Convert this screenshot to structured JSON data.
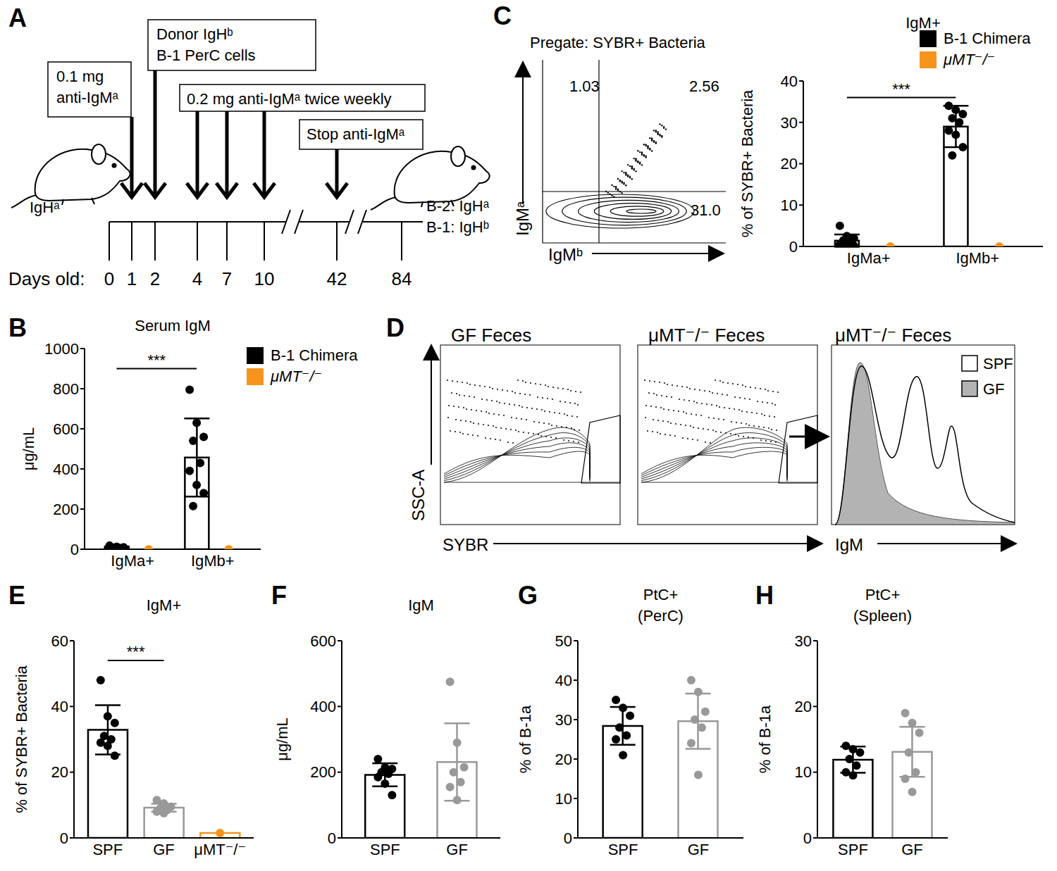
{
  "diagrams": {
    "A": {
      "panel": "A",
      "boxes": [
        {
          "lines": [
            "0.1 mg",
            "anti-IgMᵃ"
          ],
          "days": [
            1
          ]
        },
        {
          "lines": [
            "Donor IgHᵇ",
            "B-1 PerC cells"
          ],
          "days": [
            2
          ]
        },
        {
          "lines": [
            "0.2 mg anti-IgMᵃ twice weekly"
          ],
          "days": [
            4,
            7,
            10
          ]
        },
        {
          "lines": [
            "Stop anti-IgMᵃ"
          ],
          "days": [
            42
          ]
        }
      ],
      "mouse_left": "IgHᵃ",
      "mouse_right": [
        "B-2: IgHᵃ",
        "B-1: IgHᵇ"
      ],
      "axis_label": "Days old:",
      "days": [
        0,
        1,
        2,
        4,
        7,
        10,
        42,
        84
      ]
    },
    "C": {
      "panel": "C",
      "title": "Pregate: SYBR+ Bacteria",
      "xlabel": "IgMᵇ",
      "ylabel": "IgMᵃ",
      "quadrants": {
        "upper_left": "1.03",
        "upper_right": "2.56",
        "lower_right": "31.0"
      }
    },
    "D": {
      "panel": "D",
      "xlabel": "SYBR",
      "ylabel": "SSC-A",
      "hist_xlabel": "IgM",
      "plots": [
        "GF Feces",
        "μMT⁻/⁻ Feces",
        "μMT⁻/⁻ Feces"
      ],
      "hist_legend": [
        {
          "name": "SPF",
          "color": "#ffffff"
        },
        {
          "name": "GF",
          "color": "#b3b3b3"
        }
      ]
    }
  },
  "chart_data": [
    {
      "panel": "B",
      "type": "bar",
      "title": "Serum IgM",
      "ylabel": "μg/mL",
      "categories": [
        "IgMa+",
        "IgMb+"
      ],
      "ylim": [
        0,
        1000
      ],
      "yticks": [
        0,
        200,
        400,
        600,
        800,
        1000
      ],
      "legend": "upper right",
      "annotation": {
        "text": "***",
        "between": [
          "IgMa+",
          "IgMb+"
        ]
      },
      "series": [
        {
          "name": "B-1 Chimera",
          "color": "#000000",
          "values": [
            8,
            457
          ],
          "error": [
            6,
            195
          ],
          "points": [
            [
              18,
              12,
              10,
              8,
              6,
              5,
              3,
              2,
              0
            ],
            [
              795,
              630,
              560,
              540,
              430,
              390,
              320,
              280,
              215
            ]
          ]
        },
        {
          "name": "μMT⁻/⁻",
          "color": "#f7941d",
          "values": [
            0,
            0
          ],
          "points": [
            [
              0
            ],
            [
              0
            ]
          ]
        }
      ]
    },
    {
      "type": "bar",
      "title": "IgM+",
      "ylabel": "% of SYBR+ Bacteria",
      "categories": [
        "IgMa+",
        "IgMb+"
      ],
      "ylim": [
        0,
        40
      ],
      "yticks": [
        0,
        10,
        20,
        30,
        40
      ],
      "legend": "upper right",
      "annotation": {
        "text": "***",
        "between": [
          "IgMa+",
          "IgMb+"
        ]
      },
      "series": [
        {
          "name": "B-1 Chimera",
          "color": "#000000",
          "values": [
            1.4,
            29
          ],
          "error": [
            1.5,
            5
          ],
          "points": [
            [
              5,
              2.5,
              2,
              1.5,
              1,
              0.5,
              0.3,
              0.2,
              0
            ],
            [
              34,
              33,
              32,
              31,
              30,
              28,
              27,
              24,
              22
            ]
          ]
        },
        {
          "name": "μMT⁻/⁻",
          "color": "#f7941d",
          "values": [
            0,
            0
          ],
          "points": [
            [
              0
            ],
            [
              0
            ]
          ]
        }
      ]
    },
    {
      "panel": "E",
      "type": "bar",
      "title": "IgM+",
      "ylabel": "% of SYBR+ Bacteria",
      "categories": [
        "SPF",
        "GF",
        "μMT⁻/⁻"
      ],
      "ylim": [
        0,
        60
      ],
      "yticks": [
        0,
        20,
        40,
        60
      ],
      "annotation": {
        "text": "***",
        "between": [
          "SPF",
          "GF"
        ]
      },
      "series": [
        {
          "colors": [
            "#000000",
            "#999999",
            "#f7941d"
          ],
          "values": [
            32.9,
            9.2,
            1.5
          ],
          "error": [
            7.5,
            1.2,
            null
          ],
          "points": [
            [
              48,
              37,
              35,
              31,
              30,
              29,
              28,
              25
            ],
            [
              11.5,
              10.5,
              9.5,
              9,
              8.5,
              8,
              7.5
            ],
            [
              1.5
            ]
          ]
        }
      ]
    },
    {
      "panel": "F",
      "type": "bar",
      "title": "IgM",
      "ylabel": "μg/mL",
      "categories": [
        "SPF",
        "GF"
      ],
      "ylim": [
        0,
        600
      ],
      "yticks": [
        0,
        200,
        400,
        600
      ],
      "series": [
        {
          "colors": [
            "#000000",
            "#999999"
          ],
          "values": [
            192,
            231
          ],
          "error": [
            35,
            118
          ],
          "points": [
            [
              240,
              215,
              210,
              200,
              195,
              185,
              165,
              130
            ],
            [
              475,
              290,
              215,
              200,
              170,
              155,
              115
            ]
          ]
        }
      ]
    },
    {
      "panel": "G",
      "type": "bar",
      "title": "PtC+",
      "subtitle": "(PerC)",
      "ylabel": "% of B-1a",
      "categories": [
        "SPF",
        "GF"
      ],
      "ylim": [
        0,
        50
      ],
      "yticks": [
        0,
        10,
        20,
        30,
        40,
        50
      ],
      "series": [
        {
          "colors": [
            "#000000",
            "#999999"
          ],
          "values": [
            28.4,
            29.6
          ],
          "error": [
            4.8,
            7
          ],
          "points": [
            [
              35,
              33,
              31,
              28,
              26,
              25,
              21
            ],
            [
              40,
              37,
              32,
              30,
              28,
              24,
              16
            ]
          ]
        }
      ]
    },
    {
      "panel": "H",
      "type": "bar",
      "title": "PtC+",
      "subtitle": "(Spleen)",
      "ylabel": "% of B-1a",
      "categories": [
        "SPF",
        "GF"
      ],
      "ylim": [
        0,
        30
      ],
      "yticks": [
        0,
        10,
        20,
        30
      ],
      "series": [
        {
          "colors": [
            "#000000",
            "#999999"
          ],
          "values": [
            11.9,
            13.1
          ],
          "error": [
            2,
            3.8
          ],
          "points": [
            [
              14,
              13.5,
              13,
              12,
              11,
              10,
              9.5
            ],
            [
              19,
              17.5,
              16,
              13,
              10,
              9,
              7
            ]
          ]
        }
      ]
    }
  ]
}
